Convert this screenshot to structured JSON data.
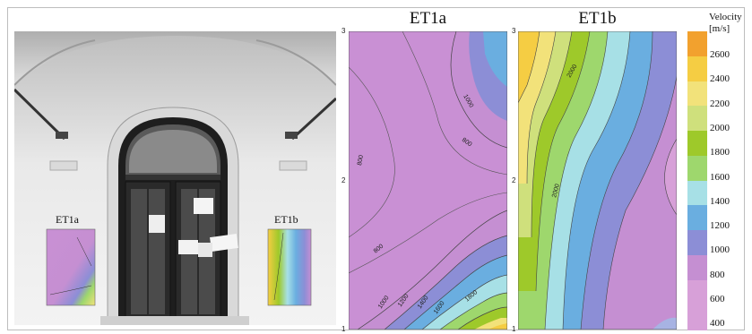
{
  "photo": {
    "label_left": "ET1a",
    "label_right": "ET1b"
  },
  "maps": [
    {
      "title": "ET1a",
      "y_ticks": [
        "3",
        "2",
        "1"
      ],
      "contour_labels": [
        "1000",
        "800",
        "800",
        "800",
        "1000",
        "1200",
        "1400",
        "1600",
        "1800"
      ]
    },
    {
      "title": "ET1b",
      "y_ticks": [
        "3",
        "2",
        "1"
      ],
      "contour_labels": [
        "2000",
        "2000"
      ]
    }
  ],
  "legend": {
    "title": "Velocity",
    "unit": "[m/s]",
    "values": [
      "2600",
      "2400",
      "2200",
      "2000",
      "1800",
      "1600",
      "1400",
      "1200",
      "1000",
      "800",
      "600",
      "400"
    ],
    "colors": [
      "#f2a12e",
      "#f5cd43",
      "#f2e27a",
      "#cfe07c",
      "#9ec92a",
      "#9ed76d",
      "#a7e0e6",
      "#6aaee0",
      "#8c8ed6",
      "#c58fd2",
      "#d7a0d8",
      "#d7a0d8"
    ]
  }
}
